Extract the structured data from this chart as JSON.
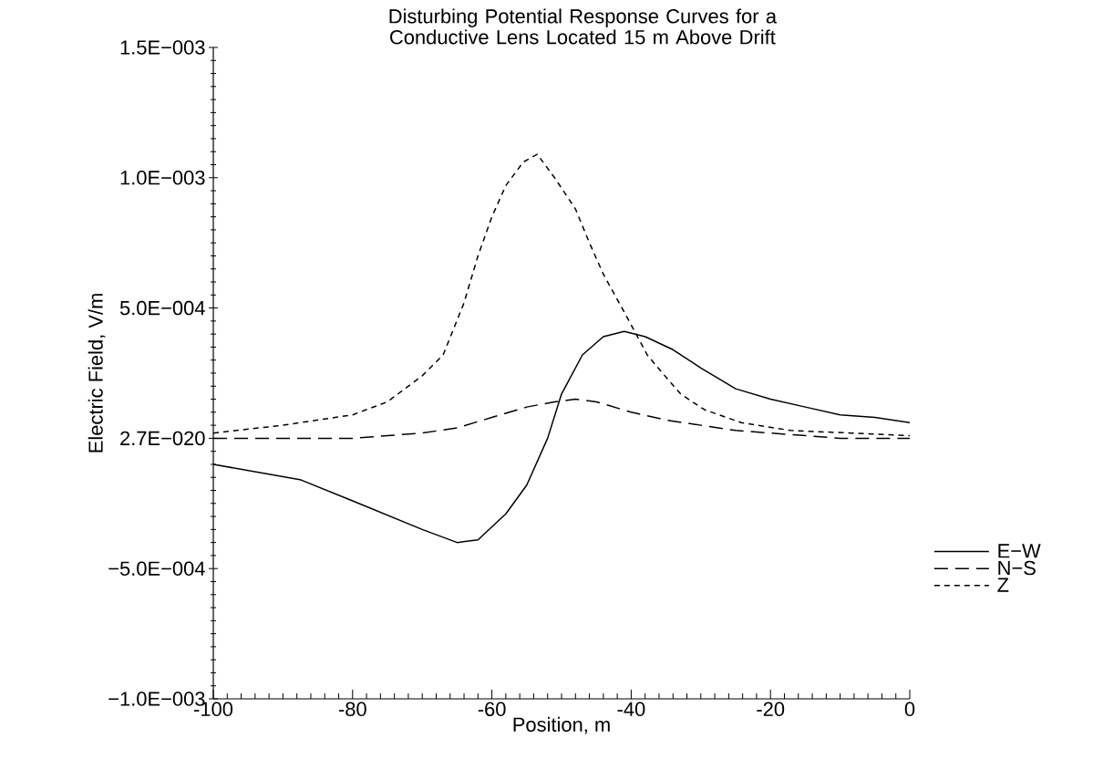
{
  "chart_data": {
    "type": "line",
    "title": "Disturbing Potential Response Curves for a Conductive Lens Located 15 m Above Drift",
    "xlabel": "Position, m",
    "ylabel": "Electric Field, V/m",
    "xlim": [
      -100,
      0
    ],
    "xticks": [
      -100,
      -80,
      -60,
      -40,
      -20,
      0
    ],
    "ylim": [
      -0.001,
      0.0015
    ],
    "yticks": [
      {
        "value": -0.001,
        "label": "−1.0E−003"
      },
      {
        "value": -0.0005,
        "label": "−5.0E−004"
      },
      {
        "value": 0,
        "label": "2.7E−020"
      },
      {
        "value": 0.0005,
        "label": "5.0E−004"
      },
      {
        "value": 0.001,
        "label": "1.0E−003"
      },
      {
        "value": 0.0015,
        "label": "1.5E−003"
      }
    ],
    "legend": "right",
    "series": [
      {
        "name": "E−W",
        "color": "#000000",
        "line_style": "solid",
        "x": [
          -100,
          -87.4,
          -80,
          -70,
          -65,
          -62,
          -58,
          -55,
          -52,
          -50,
          -47,
          -44,
          -41,
          -38,
          -34,
          -30,
          -25,
          -20,
          -15,
          -10,
          -5,
          0
        ],
        "values": [
          -0.0001,
          -0.00016,
          -0.00024,
          -0.00035,
          -0.0004,
          -0.00039,
          -0.00029,
          -0.00018,
          0,
          0.00017,
          0.00032,
          0.00039,
          0.00041,
          0.00039,
          0.00034,
          0.00027,
          0.00019,
          0.00015,
          0.00012,
          9e-05,
          8e-05,
          6e-05
        ]
      },
      {
        "name": "N−S",
        "color": "#000000",
        "line_style": "dashed",
        "x": [
          -100,
          -80,
          -70,
          -65,
          -60,
          -55,
          -51,
          -48,
          -45,
          -40,
          -35,
          -30,
          -25,
          -20,
          -10,
          0
        ],
        "values": [
          0,
          0,
          2e-05,
          4e-05,
          8e-05,
          0.00012,
          0.00014,
          0.00015,
          0.00014,
          0.0001,
          7e-05,
          5e-05,
          3e-05,
          2e-05,
          0,
          0
        ]
      },
      {
        "name": "Z",
        "color": "#000000",
        "line_style": "dotted",
        "x": [
          -100,
          -90,
          -80,
          -75,
          -70,
          -67,
          -64,
          -62,
          -60,
          -58,
          -55.5,
          -53.5,
          -51,
          -48,
          -46,
          -44,
          -40.3,
          -37.7,
          -35.5,
          -32.9,
          -29.5,
          -24.2,
          -17.1,
          -8.5,
          0
        ],
        "values": [
          2e-05,
          5e-05,
          9e-05,
          0.00014,
          0.00024,
          0.00032,
          0.00052,
          0.0007,
          0.00085,
          0.00097,
          0.00106,
          0.00109,
          0.001,
          0.00088,
          0.00075,
          0.00063,
          0.00045,
          0.00032,
          0.00025,
          0.00017,
          0.00011,
          6e-05,
          3e-05,
          2e-05,
          1e-05
        ]
      }
    ]
  }
}
